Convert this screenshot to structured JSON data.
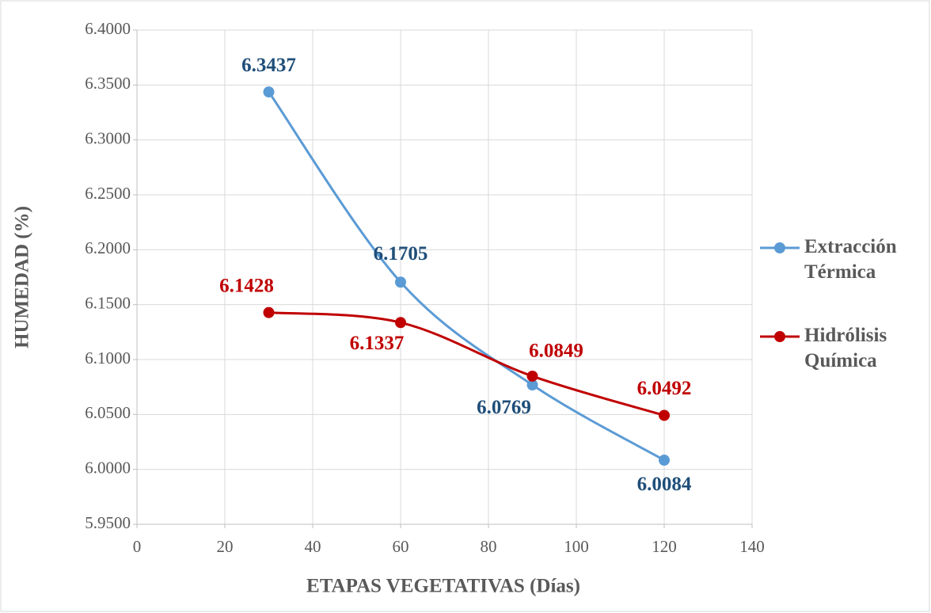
{
  "chart_data": {
    "type": "line",
    "x_label": "ETAPAS VEGETATIVAS (Días)",
    "y_label": "HUMEDAD (%)",
    "x": [
      30,
      60,
      90,
      120
    ],
    "series": [
      {
        "name": "Extracción Térmica",
        "color": "#5b9bd5",
        "label_color": "#1f4e79",
        "values": [
          6.3437,
          6.1705,
          6.0769,
          6.0084
        ]
      },
      {
        "name": "Hidrólisis Química",
        "color": "#c00000",
        "label_color": "#c00000",
        "values": [
          6.1428,
          6.1337,
          6.0849,
          6.0492
        ]
      }
    ],
    "xlim": [
      0,
      140
    ],
    "xticks": [
      0,
      20,
      40,
      60,
      80,
      100,
      120,
      140
    ],
    "ylim": [
      5.95,
      6.4
    ],
    "yticks": [
      {
        "value": 5.95,
        "label": "5.9500"
      },
      {
        "value": 6.0,
        "label": "6.0000"
      },
      {
        "value": 6.05,
        "label": "6.0500"
      },
      {
        "value": 6.1,
        "label": "6.1000"
      },
      {
        "value": 6.15,
        "label": "6.1500"
      },
      {
        "value": 6.2,
        "label": "6.2000"
      },
      {
        "value": 6.25,
        "label": "6.2500"
      },
      {
        "value": 6.3,
        "label": "6.3000"
      },
      {
        "value": 6.35,
        "label": "6.3500"
      },
      {
        "value": 6.4,
        "label": "6.4000"
      }
    ],
    "grid": true,
    "smooth": true,
    "legend": "right"
  }
}
